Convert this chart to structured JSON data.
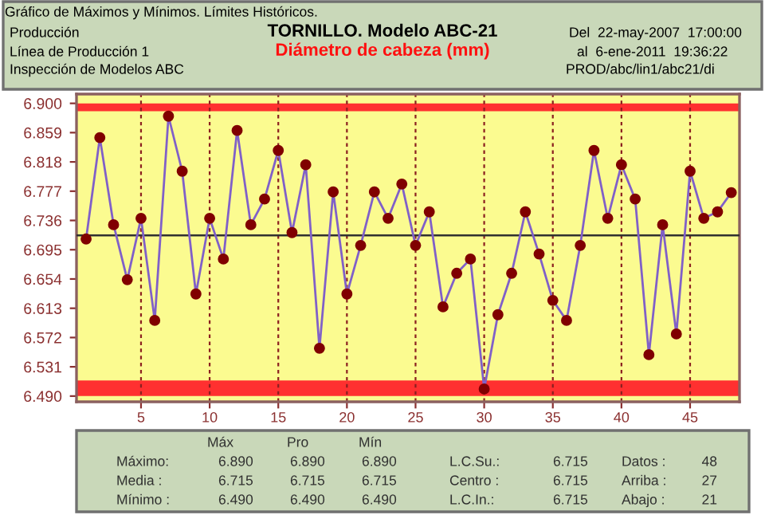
{
  "chart_data": {
    "type": "line",
    "title": "TORNILLO. Modelo ABC-21",
    "subtitle": "Diámetro de cabeza (mm)",
    "annotations": [
      "Gráfico de Máximos y Mínimos. Límites Históricos.",
      "Producción",
      "Línea de Producción 1",
      "Inspección de Modelos ABC",
      "Del  22-may-2007  17:00:00",
      "al  6-ene-2011  19:36:22",
      "PROD/abc/lin1/abc21/di",
      "Máx",
      "Pro",
      "Mín",
      "Máximo:",
      "6.890",
      "6.890",
      "6.890",
      "L.C.Su.:",
      "6.715",
      "Datos :",
      "48",
      "Media :",
      "6.715",
      "6.715",
      "6.715",
      "Centro :",
      "6.715",
      "Arriba :",
      "27",
      "Mínimo :",
      "6.490",
      "6.490",
      "6.490",
      "L.C.In.:",
      "6.715",
      "Abajo :",
      "21"
    ],
    "x": [
      1,
      2,
      3,
      4,
      5,
      6,
      7,
      8,
      9,
      10,
      11,
      12,
      13,
      14,
      15,
      16,
      17,
      18,
      19,
      20,
      21,
      22,
      23,
      24,
      25,
      26,
      27,
      28,
      29,
      30,
      31,
      32,
      33,
      34,
      35,
      36,
      37,
      38,
      39,
      40,
      41,
      42,
      43,
      44,
      45,
      46,
      47,
      48
    ],
    "series": [
      {
        "color": "#8060c8",
        "values": [
          6.71,
          6.852,
          6.73,
          6.653,
          6.739,
          6.596,
          6.882,
          6.805,
          6.633,
          6.739,
          6.682,
          6.862,
          6.73,
          6.766,
          6.834,
          6.719,
          6.814,
          6.557,
          6.776,
          6.633,
          6.701,
          6.776,
          6.739,
          6.787,
          6.701,
          6.748,
          6.615,
          6.662,
          6.682,
          6.5,
          6.604,
          6.662,
          6.748,
          6.689,
          6.624,
          6.596,
          6.701,
          6.834,
          6.739,
          6.814,
          6.766,
          6.548,
          6.73,
          6.577,
          6.805,
          6.739,
          6.748,
          6.775
        ]
      }
    ],
    "marker": "circle",
    "xlim": [
      0.3,
      48.6
    ],
    "xticks": [
      5,
      10,
      15,
      20,
      25,
      30,
      35,
      40,
      45
    ],
    "ylim": [
      6.482,
      6.913
    ],
    "yticks": [
      {
        "value": 6.49,
        "label": "6.490"
      },
      6.531,
      6.572,
      6.613,
      6.654,
      6.695,
      6.736,
      6.777,
      6.818,
      6.859,
      {
        "value": 6.9,
        "label": "6.900"
      }
    ],
    "grid": "x",
    "ref_lines": [
      {
        "axis": "y",
        "value": 6.715,
        "color": "#303030"
      }
    ],
    "bands": [
      {
        "axis": "y",
        "from": 6.889,
        "to": 6.9,
        "color": "#ff3030"
      },
      {
        "axis": "y",
        "from": 6.49,
        "to": 6.512,
        "color": "#ff3030"
      }
    ]
  }
}
